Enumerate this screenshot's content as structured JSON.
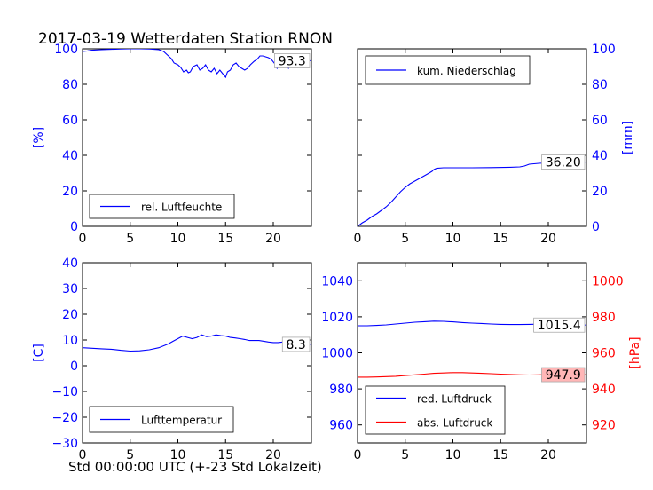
{
  "figure": {
    "title": "2017-03-19 Wetterdaten Station RNON",
    "xlabel": "Std 00:00:00 UTC (+-23 Std Lokalzeit)"
  },
  "colors": {
    "blue": "#0000ff",
    "red": "#ff0000",
    "black": "#000000",
    "label_bg_red": "#ffb6b6"
  },
  "chart_data": [
    {
      "type": "line",
      "id": "humidity",
      "ylabel": "[%]",
      "xlim": [
        0,
        24
      ],
      "ylim": [
        0,
        100
      ],
      "xticks": [
        0,
        5,
        10,
        15,
        20
      ],
      "yticks": [
        0,
        20,
        40,
        60,
        80,
        100
      ],
      "legend_position": "bottom-left",
      "series": [
        {
          "name": "rel. Luftfeuchte",
          "color": "#0000ff",
          "last_value_label": "93.3",
          "x": [
            0,
            0.5,
            1,
            2,
            3,
            4,
            5,
            6,
            7,
            8,
            8.5,
            9,
            9.3,
            9.6,
            10,
            10.3,
            10.6,
            10.9,
            11.1,
            11.3,
            11.6,
            12,
            12.3,
            12.6,
            12.9,
            13.2,
            13.5,
            13.8,
            14.1,
            14.4,
            14.7,
            15,
            15.2,
            15.5,
            15.8,
            16.1,
            16.4,
            16.7,
            17,
            17.3,
            17.6,
            18,
            18.3,
            18.6,
            18.9,
            19.2,
            19.5,
            19.8,
            20.1,
            20.4,
            20.7,
            21,
            21.3,
            21.6,
            22,
            22.3,
            22.6,
            23,
            23.3,
            23.6,
            24
          ],
          "y": [
            98.5,
            98.8,
            99.2,
            99.5,
            99.7,
            99.9,
            100,
            100,
            99.9,
            99.5,
            98.5,
            96,
            94.5,
            92,
            91,
            89.5,
            87,
            88,
            86.5,
            87,
            90,
            91,
            88,
            89,
            91,
            88,
            87,
            89,
            86,
            88,
            86,
            84,
            87,
            88,
            91,
            92,
            90,
            89,
            88,
            89,
            91,
            93,
            94,
            96,
            96,
            95.5,
            95,
            94,
            92,
            89,
            92,
            90,
            91,
            89,
            92,
            90,
            91,
            92,
            93,
            93.3,
            93.3
          ]
        }
      ]
    },
    {
      "type": "line",
      "id": "precipitation",
      "ylabel": "[mm]",
      "xlim": [
        0,
        24
      ],
      "ylim": [
        0,
        100
      ],
      "xticks": [
        0,
        5,
        10,
        15,
        20
      ],
      "yticks": [
        0,
        20,
        40,
        60,
        80,
        100
      ],
      "y_axis_side": "right",
      "legend_position": "top-left",
      "series": [
        {
          "name": "kum. Niederschlag",
          "color": "#0000ff",
          "last_value_label": "36.20",
          "x": [
            0,
            0.5,
            1,
            1.5,
            2,
            2.5,
            3,
            3.5,
            4,
            4.5,
            5,
            5.5,
            6,
            6.5,
            7,
            7.5,
            7.8,
            8,
            8.3,
            9,
            10,
            12,
            14,
            16,
            17,
            17.5,
            18,
            19,
            20,
            21,
            22,
            23,
            24
          ],
          "y": [
            0,
            2,
            3.5,
            5.5,
            7,
            9,
            11,
            13.5,
            16.5,
            19.5,
            22,
            24,
            25.5,
            27,
            28.5,
            30,
            31,
            32,
            32.7,
            33,
            33,
            33,
            33.1,
            33.3,
            33.5,
            34,
            35,
            35.5,
            35.8,
            36,
            36.1,
            36.2,
            36.2
          ]
        }
      ]
    },
    {
      "type": "line",
      "id": "temperature",
      "ylabel": "[C]",
      "xlim": [
        0,
        24
      ],
      "ylim": [
        -30,
        40
      ],
      "xticks": [
        0,
        5,
        10,
        15,
        20
      ],
      "yticks": [
        -30,
        -20,
        -10,
        0,
        10,
        20,
        30,
        40
      ],
      "legend_position": "bottom-left",
      "series": [
        {
          "name": "Lufttemperatur",
          "color": "#0000ff",
          "last_value_label": "8.3",
          "x": [
            0,
            1,
            2,
            3,
            4,
            5,
            6,
            7,
            8,
            9,
            9.5,
            10,
            10.5,
            11,
            11.5,
            12,
            12.5,
            13,
            13.5,
            14,
            14.5,
            15,
            15.5,
            16,
            16.5,
            17,
            17.5,
            18,
            18.5,
            19,
            19.5,
            20,
            20.5,
            21,
            21.5,
            22,
            22.5,
            23,
            23.5,
            24
          ],
          "y": [
            7,
            6.8,
            6.6,
            6.4,
            6,
            5.7,
            5.8,
            6.2,
            7,
            8.5,
            9.5,
            10.5,
            11.5,
            11,
            10.5,
            11,
            12,
            11.3,
            11.5,
            12,
            11.7,
            11.5,
            11,
            10.8,
            10.5,
            10.2,
            9.8,
            9.8,
            9.8,
            9.5,
            9.2,
            9,
            9,
            9.2,
            9,
            9.5,
            9,
            8.8,
            8.5,
            8.3
          ]
        }
      ]
    },
    {
      "type": "line",
      "id": "pressure",
      "xlim": [
        0,
        24
      ],
      "ylim": [
        950,
        1050
      ],
      "yticks": [
        960,
        980,
        1000,
        1020,
        1040
      ],
      "xticks": [
        0,
        5,
        10,
        15,
        20
      ],
      "ylim_right": [
        910,
        1010
      ],
      "yticks_right": [
        920,
        940,
        960,
        980,
        1000
      ],
      "ylabel_right": "[hPa]",
      "legend_position": "bottom-left",
      "series": [
        {
          "name": "red. Luftdruck",
          "color": "#0000ff",
          "axis": "left",
          "last_value_label": "1015.4",
          "x": [
            0,
            1,
            2,
            3,
            4,
            5,
            6,
            7,
            8,
            9,
            10,
            11,
            12,
            13,
            14,
            15,
            16,
            17,
            18,
            19,
            20,
            21,
            22,
            23,
            24
          ],
          "y": [
            1015,
            1015,
            1015.2,
            1015.5,
            1016,
            1016.5,
            1017,
            1017.3,
            1017.6,
            1017.5,
            1017.2,
            1016.8,
            1016.5,
            1016.3,
            1016,
            1015.8,
            1015.7,
            1015.7,
            1015.8,
            1015.9,
            1016,
            1015.6,
            1015.4,
            1015.4,
            1015.4
          ]
        },
        {
          "name": "abs. Luftdruck",
          "color": "#ff0000",
          "axis": "right",
          "last_value_label": "947.9",
          "x": [
            0,
            1,
            2,
            3,
            4,
            5,
            6,
            7,
            8,
            9,
            10,
            11,
            12,
            13,
            14,
            15,
            16,
            17,
            18,
            19,
            20,
            21,
            22,
            23,
            24
          ],
          "y": [
            946.5,
            946.5,
            946.6,
            946.8,
            947,
            947.4,
            947.8,
            948.2,
            948.6,
            948.8,
            949,
            949,
            948.8,
            948.6,
            948.4,
            948.2,
            948,
            947.8,
            947.7,
            947.8,
            948,
            948,
            947.9,
            947.9,
            947.9
          ]
        }
      ]
    }
  ]
}
